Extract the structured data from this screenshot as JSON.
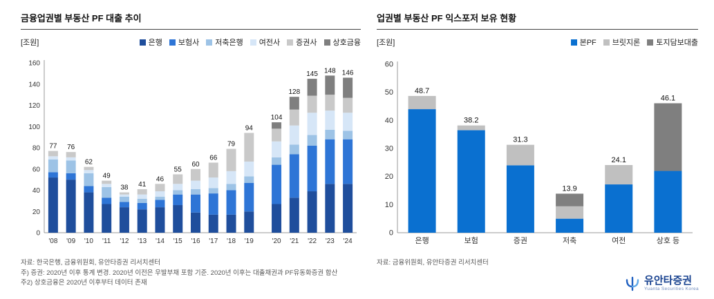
{
  "chart_data": [
    {
      "type": "bar",
      "stacked": true,
      "title": "금융업권별 부동산 PF 대출 추이",
      "unit_label": "[조원]",
      "categories": [
        "'08",
        "'09",
        "'10",
        "'11",
        "'12",
        "'13",
        "'14",
        "'15",
        "'16",
        "'17",
        "'18",
        "'19",
        "'20",
        "'21",
        "'22",
        "'23",
        "'24"
      ],
      "series": [
        {
          "name": "은행",
          "color": "#1F4E9C",
          "values": [
            52,
            50,
            38,
            27,
            24,
            22,
            24,
            26,
            19,
            17,
            17,
            20,
            27,
            33,
            39,
            46,
            46
          ]
        },
        {
          "name": "보험사",
          "color": "#2E75D6",
          "values": [
            5,
            6,
            6,
            6,
            5,
            6,
            7,
            10,
            17,
            20,
            23,
            27,
            37,
            41,
            43,
            42,
            42
          ]
        },
        {
          "name": "저축은행",
          "color": "#9DC3E6",
          "values": [
            12,
            12,
            12,
            10,
            5,
            4,
            3,
            4,
            5,
            5,
            6,
            6,
            7,
            9,
            10,
            9,
            8
          ]
        },
        {
          "name": "여전사",
          "color": "#D6E6F7",
          "values": [
            3,
            3,
            3,
            3,
            2,
            4,
            5,
            6,
            8,
            10,
            12,
            14,
            15,
            18,
            21,
            18,
            17
          ]
        },
        {
          "name": "증권사",
          "color": "#C9C9C9",
          "values": [
            5,
            5,
            3,
            3,
            2,
            5,
            7,
            9,
            11,
            14,
            21,
            27,
            12,
            15,
            16,
            15,
            14
          ]
        },
        {
          "name": "상호금융",
          "color": "#7F7F7F",
          "values": [
            0,
            0,
            0,
            0,
            0,
            0,
            0,
            0,
            0,
            0,
            0,
            0,
            6,
            12,
            16,
            18,
            19
          ]
        }
      ],
      "totals": [
        77,
        76,
        62,
        49,
        38,
        41,
        46,
        55,
        60,
        66,
        79,
        94,
        104,
        128,
        145,
        148,
        146
      ],
      "ylim": [
        0,
        160
      ],
      "ytick_step": 20,
      "gap_after_index": 11,
      "legend_position": "top-right",
      "grid": false
    },
    {
      "type": "bar",
      "stacked": true,
      "title": "업권별 부동산 PF 익스포저 보유 현황",
      "unit_label": "[조원]",
      "categories": [
        "은행",
        "보험",
        "증권",
        "저축",
        "여전",
        "상호 등"
      ],
      "series": [
        {
          "name": "본PF",
          "color": "#0A70D0",
          "values": [
            44,
            36.5,
            24,
            5,
            17.2,
            22
          ]
        },
        {
          "name": "브릿지론",
          "color": "#C0C0C0",
          "values": [
            4.7,
            1.7,
            7.3,
            4.4,
            6.9,
            0
          ]
        },
        {
          "name": "토지담보대출",
          "color": "#7F7F7F",
          "values": [
            0,
            0,
            0,
            4.5,
            0,
            24.1
          ]
        }
      ],
      "totals": [
        48.7,
        38.2,
        31.3,
        13.9,
        24.1,
        46.1
      ],
      "ylim": [
        0,
        60
      ],
      "ytick_step": 10,
      "gap_after_index": -1,
      "legend_position": "top-right",
      "grid": false
    }
  ],
  "footnotes": {
    "left": [
      "자료: 한국은행, 금융위원회, 유안타증권 리서치센터",
      "주) 증권: 2020년 이후 통계 변경. 2020년 이전은 우발부채 포함 기준. 2020년 이후는 대출채권과 PF유동화증권 합산",
      "주2) 상호금융은 2020년 이후부터 데이터 존재"
    ],
    "right": [
      "자료: 금융위원회, 유안타증권 리서치센터"
    ]
  },
  "footer": {
    "logo_text": "유안타증권",
    "logo_subtext": "Yuanta Securities Korea"
  },
  "colors": {
    "title_rule": "#404040",
    "axis": "#999999",
    "logo_blue": "#17418f",
    "logo_light_blue": "#5FA8E8"
  }
}
